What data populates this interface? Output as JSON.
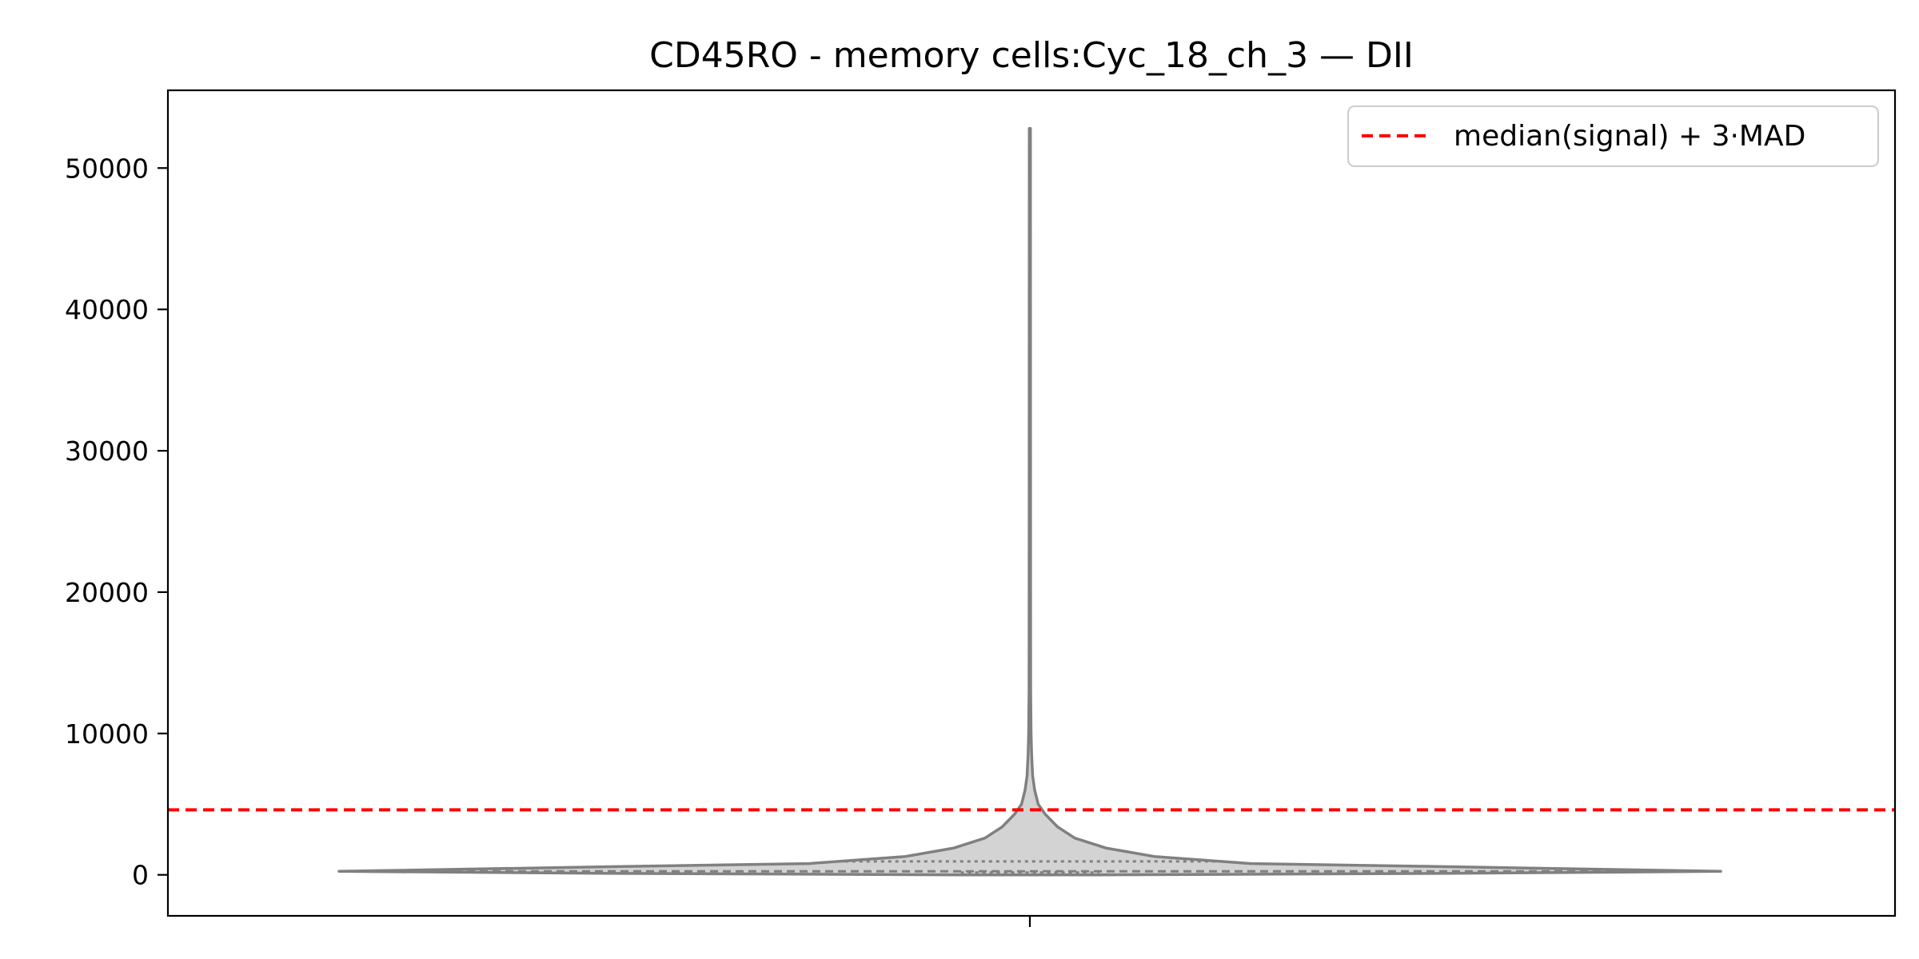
{
  "chart_data": {
    "type": "violin",
    "title": "CD45RO - memory cells:Cyc_18_ch_3 — DII",
    "xlabel": "",
    "ylabel": "",
    "ylim": [
      -2900,
      55500
    ],
    "yticks": [
      0,
      10000,
      20000,
      30000,
      40000,
      50000
    ],
    "ytick_labels": [
      "0",
      "10000",
      "20000",
      "30000",
      "40000",
      "50000"
    ],
    "grid": false,
    "legend": {
      "location": "upper right",
      "entries": [
        {
          "label": "median(signal) + 3·MAD",
          "style": "dashed",
          "color": "#ff0000"
        }
      ]
    },
    "colors": {
      "violin_fill": "#d3d3d3",
      "violin_edge": "#808080",
      "threshold": "#ff0000"
    },
    "violin": {
      "min": 0,
      "max": 52800,
      "quartiles": [
        0,
        250,
        950
      ],
      "threshold_line": 4600,
      "density_profile": [
        {
          "value": 0,
          "half_width": 0.1
        },
        {
          "value": 100,
          "half_width": 0.6
        },
        {
          "value": 250,
          "half_width": 1.0
        },
        {
          "value": 600,
          "half_width": 0.58
        },
        {
          "value": 800,
          "half_width": 0.32
        },
        {
          "value": 1300,
          "half_width": 0.18
        },
        {
          "value": 1900,
          "half_width": 0.11
        },
        {
          "value": 2600,
          "half_width": 0.065
        },
        {
          "value": 3400,
          "half_width": 0.04
        },
        {
          "value": 4300,
          "half_width": 0.022
        },
        {
          "value": 5000,
          "half_width": 0.012
        },
        {
          "value": 6000,
          "half_width": 0.007
        },
        {
          "value": 7000,
          "half_width": 0.004
        },
        {
          "value": 8500,
          "half_width": 0.0025
        },
        {
          "value": 10000,
          "half_width": 0.0017
        },
        {
          "value": 13000,
          "half_width": 0.0012
        },
        {
          "value": 20000,
          "half_width": 0.001
        },
        {
          "value": 35000,
          "half_width": 0.0009
        },
        {
          "value": 52800,
          "half_width": 0.0008
        }
      ]
    }
  }
}
